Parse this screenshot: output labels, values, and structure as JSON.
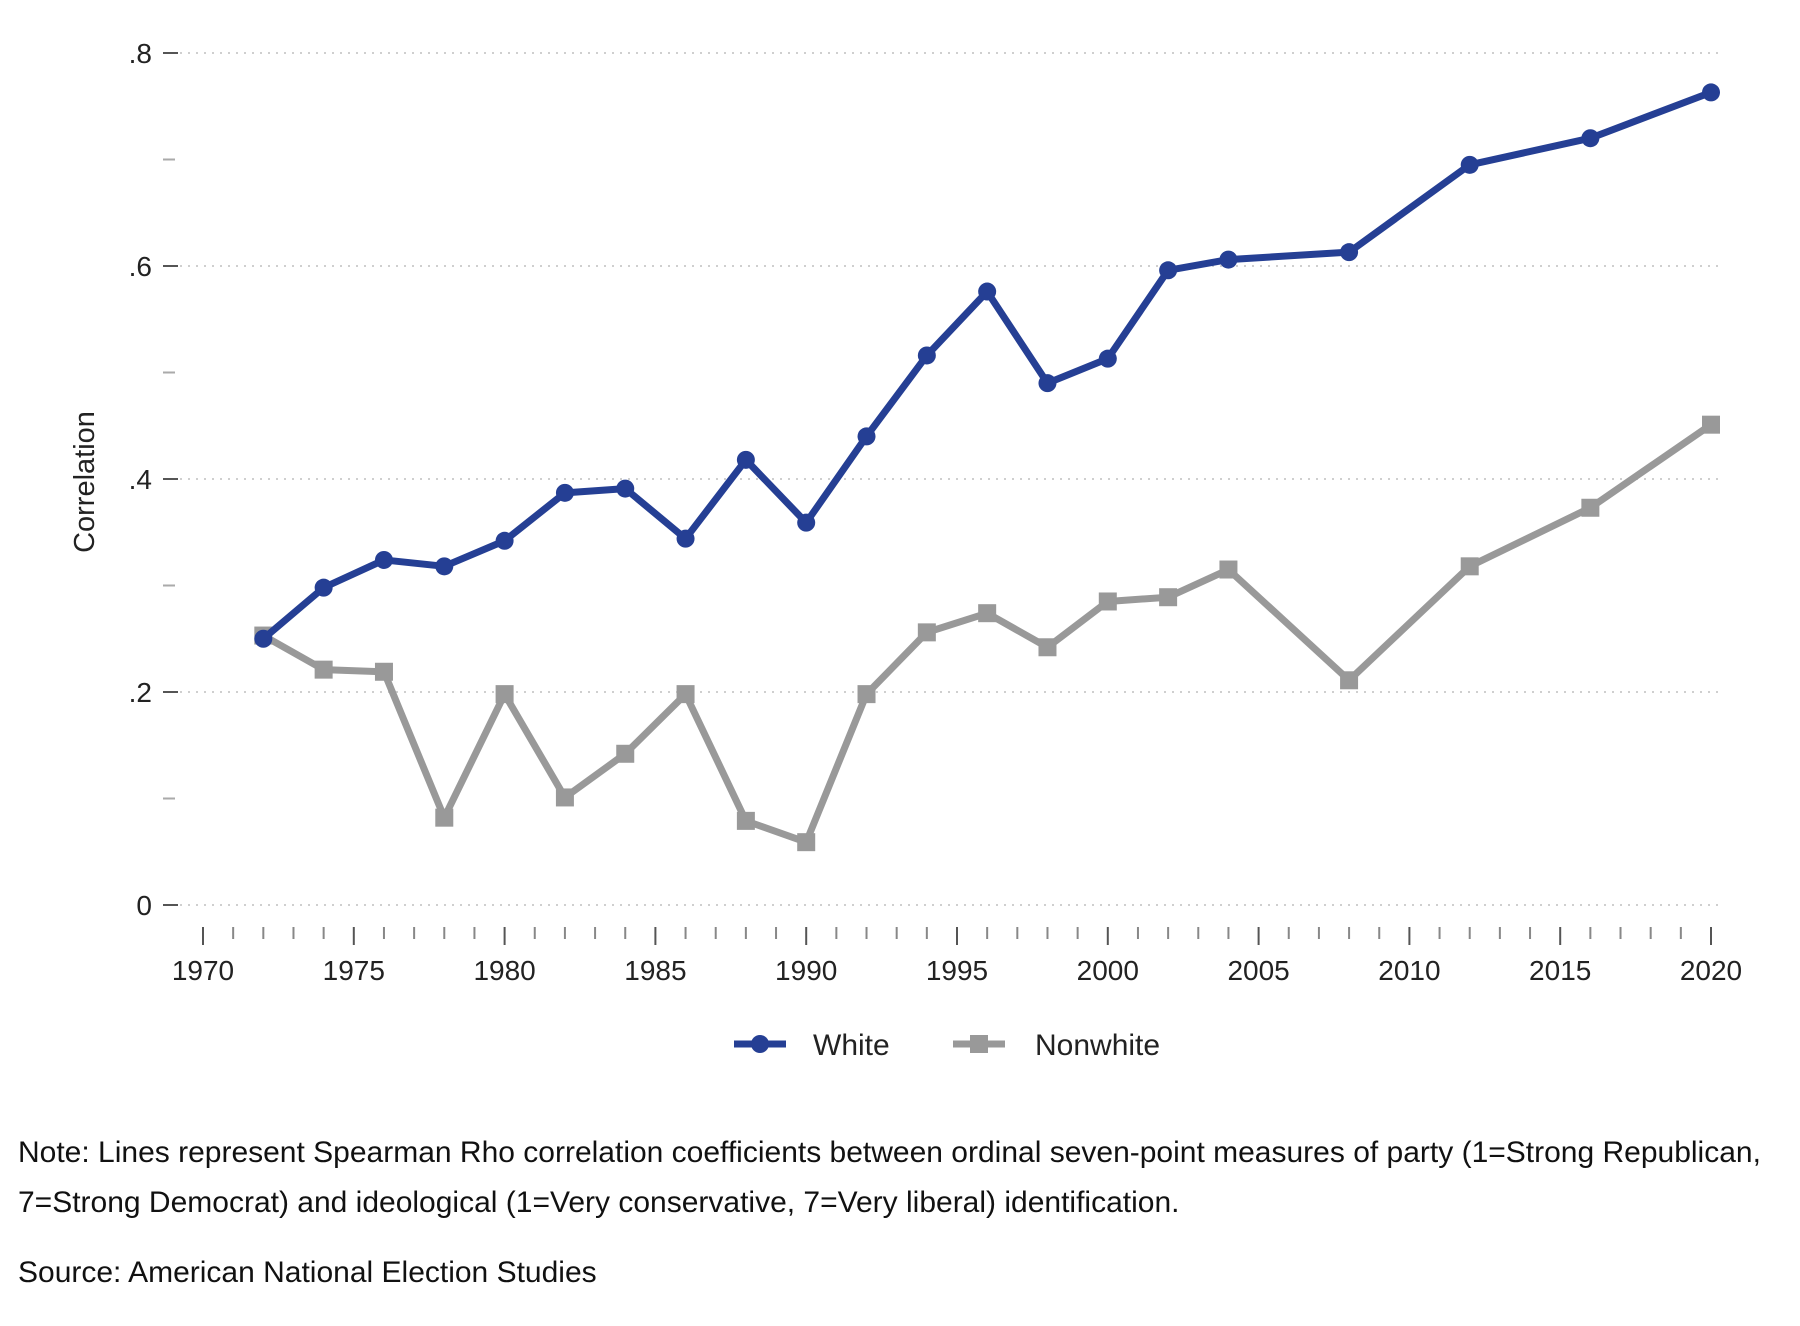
{
  "chart_data": {
    "type": "line",
    "title": "",
    "xlabel": "",
    "ylabel": "Correlation",
    "xlim": [
      1970,
      2020
    ],
    "ylim": [
      0,
      0.8
    ],
    "x_ticks": [
      1970,
      1975,
      1980,
      1985,
      1990,
      1995,
      2000,
      2005,
      2010,
      2015,
      2020
    ],
    "y_ticks": [
      0,
      0.2,
      0.4,
      0.6,
      0.8
    ],
    "y_tick_labels": [
      "0",
      ".2",
      ".4",
      ".6",
      ".8"
    ],
    "grid": "horizontal dotted",
    "legend_position": "bottom-center",
    "series": [
      {
        "name": "White",
        "color": "#253f94",
        "marker": "circle",
        "x": [
          1972,
          1974,
          1976,
          1978,
          1980,
          1982,
          1984,
          1986,
          1988,
          1990,
          1992,
          1994,
          1996,
          1998,
          2000,
          2002,
          2004,
          2008,
          2012,
          2016,
          2020
        ],
        "values": [
          0.25,
          0.298,
          0.324,
          0.318,
          0.342,
          0.387,
          0.391,
          0.344,
          0.418,
          0.359,
          0.44,
          0.516,
          0.576,
          0.49,
          0.513,
          0.596,
          0.606,
          0.613,
          0.695,
          0.72,
          0.763
        ]
      },
      {
        "name": "Nonwhite",
        "color": "#999999",
        "marker": "square",
        "x": [
          1972,
          1974,
          1976,
          1978,
          1980,
          1982,
          1984,
          1986,
          1988,
          1990,
          1992,
          1994,
          1996,
          1998,
          2000,
          2002,
          2004,
          2008,
          2012,
          2016,
          2020
        ],
        "values": [
          0.253,
          0.221,
          0.219,
          0.082,
          0.198,
          0.101,
          0.142,
          0.198,
          0.079,
          0.059,
          0.198,
          0.256,
          0.274,
          0.242,
          0.285,
          0.289,
          0.315,
          0.211,
          0.318,
          0.373,
          0.451
        ]
      }
    ]
  },
  "footer": {
    "note": "Note: Lines represent Spearman Rho correlation coefficients between ordinal seven-point measures of party (1=Strong Republican, 7=Strong Democrat) and ideological (1=Very conservative, 7=Very liberal) identification.",
    "source": "Source: American National Election Studies"
  }
}
